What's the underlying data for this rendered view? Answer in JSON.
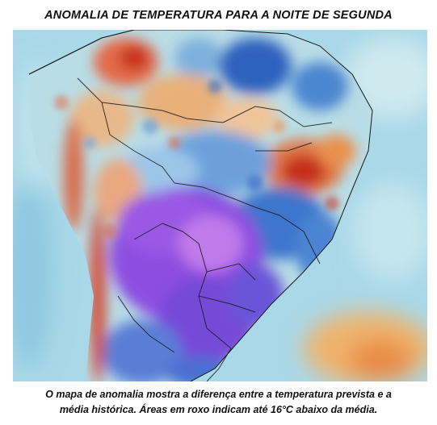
{
  "header": {
    "title": "ANOMALIA DE TEMPERATURA PARA A NOITE DE SEGUNDA"
  },
  "map": {
    "region": "South America / Brazil",
    "variable": "temperature-anomaly",
    "colors": {
      "ocean": "#9fd3e6",
      "light_blue": "#cfe9ef",
      "blue": "#5a95d6",
      "dark_blue": "#2c5fbf",
      "purple": "#8f4fe0",
      "light_purple": "#c07ae8",
      "orange": "#e9a05c",
      "red": "#c9301e",
      "borders": "#1a1a1a"
    }
  },
  "footer": {
    "caption_line1": "O mapa de anomalia mostra a diferença entre a temperatura prevista e a",
    "caption_line2": "média histórica. Áreas em roxo indicam até 16°C abaixo da média."
  }
}
